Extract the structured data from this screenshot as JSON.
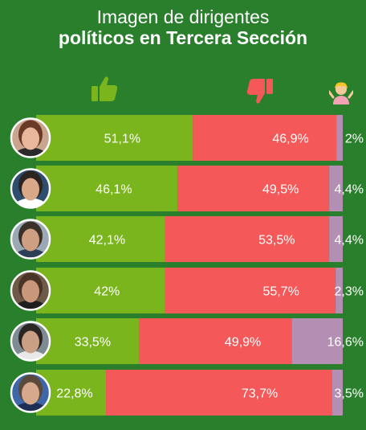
{
  "title": {
    "line1": "Imagen de dirigentes",
    "line2": "políticos en Tercera Sección"
  },
  "header_icons": [
    "thumbs-up-icon",
    "thumbs-down-icon",
    "shrug-person-icon"
  ],
  "colors": {
    "background": "#2a7f2c",
    "positive": "#7ab51d",
    "negative": "#f45858",
    "neutral": "#b48fb3",
    "text": "#ffffff"
  },
  "chart_data": {
    "type": "bar",
    "stacked": true,
    "orientation": "horizontal",
    "categories": [
      "",
      "",
      "",
      "",
      "",
      ""
    ],
    "series": [
      {
        "values": [
          51.1,
          46.1,
          42.1,
          42,
          33.5,
          22.8
        ]
      },
      {
        "values": [
          46.9,
          49.5,
          53.5,
          55.7,
          49.9,
          73.7
        ]
      },
      {
        "values": [
          2,
          4.4,
          4.4,
          2.3,
          16.6,
          3.5
        ]
      }
    ],
    "labels": [
      [
        "51,1%",
        "46,9%",
        "2%"
      ],
      [
        "46,1%",
        "49,5%",
        "4,4%"
      ],
      [
        "42,1%",
        "53,5%",
        "4,4%"
      ],
      [
        "42%",
        "55,7%",
        "2,3%"
      ],
      [
        "33,5%",
        "49,9%",
        "16,6%"
      ],
      [
        "22,8%",
        "73,7%",
        "3,5%"
      ]
    ],
    "xlim": [
      0,
      100
    ],
    "grid": false,
    "legend": "none"
  }
}
